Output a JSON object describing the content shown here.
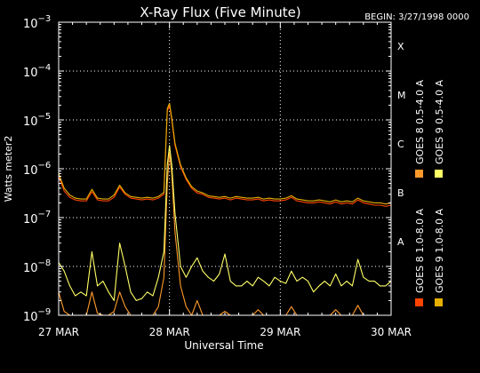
{
  "chart_data": {
    "type": "line",
    "title": "X-Ray Flux (Five Minute)",
    "begin_label": "BEGIN: 3/27/1998 0000",
    "xlabel": "Universal Time",
    "ylabel": "Watts meter2",
    "x_ticks": [
      "27 MAR",
      "28 MAR",
      "29 MAR",
      "30 MAR"
    ],
    "x_days": [
      27,
      30
    ],
    "y_scale": "log",
    "ylim": [
      1e-09,
      0.001
    ],
    "y_ticks": [
      {
        "base": "10",
        "exp": "−9",
        "value": 1e-09
      },
      {
        "base": "10",
        "exp": "−8",
        "value": 1e-08
      },
      {
        "base": "10",
        "exp": "−7",
        "value": 1e-07
      },
      {
        "base": "10",
        "exp": "−6",
        "value": 1e-06
      },
      {
        "base": "10",
        "exp": "−5",
        "value": 1e-05
      },
      {
        "base": "10",
        "exp": "−4",
        "value": 0.0001
      },
      {
        "base": "10",
        "exp": "−3",
        "value": 0.001
      }
    ],
    "flare_classes": [
      {
        "label": "A",
        "value": 1e-08
      },
      {
        "label": "B",
        "value": 1e-07
      },
      {
        "label": "C",
        "value": 1e-06
      },
      {
        "label": "M",
        "value": 1e-05
      },
      {
        "label": "X",
        "value": 0.0001
      }
    ],
    "grid": true,
    "legend_placement": "right",
    "series": [
      {
        "name": "GOES 8 1.0-8.0 A",
        "color": "#ff4400",
        "x": [
          27.0,
          27.05,
          27.1,
          27.15,
          27.2,
          27.25,
          27.3,
          27.35,
          27.4,
          27.45,
          27.5,
          27.55,
          27.6,
          27.65,
          27.7,
          27.75,
          27.8,
          27.85,
          27.9,
          27.95,
          27.98,
          28.0,
          28.02,
          28.05,
          28.1,
          28.15,
          28.2,
          28.25,
          28.3,
          28.35,
          28.4,
          28.45,
          28.5,
          28.55,
          28.6,
          28.65,
          28.7,
          28.75,
          28.8,
          28.85,
          28.9,
          28.95,
          29.0,
          29.05,
          29.1,
          29.15,
          29.2,
          29.25,
          29.3,
          29.35,
          29.4,
          29.45,
          29.5,
          29.55,
          29.6,
          29.65,
          29.7,
          29.75,
          29.8,
          29.85,
          29.9,
          29.95,
          30.0
        ],
        "y": [
          7e-07,
          3.5e-07,
          2.6e-07,
          2.3e-07,
          2.2e-07,
          2.2e-07,
          3.4e-07,
          2.3e-07,
          2.2e-07,
          2.2e-07,
          2.6e-07,
          4.2e-07,
          3e-07,
          2.5e-07,
          2.4e-07,
          2.3e-07,
          2.4e-07,
          2.3e-07,
          2.5e-07,
          3e-07,
          1.5e-05,
          2e-05,
          1e-05,
          3e-06,
          1.1e-06,
          6e-07,
          4e-07,
          3.2e-07,
          3e-07,
          2.6e-07,
          2.5e-07,
          2.4e-07,
          2.5e-07,
          2.3e-07,
          2.5e-07,
          2.4e-07,
          2.3e-07,
          2.3e-07,
          2.4e-07,
          2.2e-07,
          2.3e-07,
          2.2e-07,
          2.2e-07,
          2.3e-07,
          2.6e-07,
          2.2e-07,
          2.1e-07,
          2e-07,
          2e-07,
          2.1e-07,
          2e-07,
          1.9e-07,
          2.1e-07,
          1.9e-07,
          2e-07,
          1.9e-07,
          2.3e-07,
          2e-07,
          1.9e-07,
          1.8e-07,
          1.8e-07,
          1.7e-07,
          1.8e-07
        ]
      },
      {
        "name": "GOES 8 0.5-4.0 A",
        "color": "#ff9a2a",
        "x": [
          27.0,
          27.05,
          27.1,
          27.15,
          27.2,
          27.25,
          27.3,
          27.35,
          27.4,
          27.45,
          27.5,
          27.55,
          27.6,
          27.65,
          27.7,
          27.75,
          27.8,
          27.85,
          27.9,
          27.95,
          27.98,
          28.0,
          28.02,
          28.05,
          28.1,
          28.15,
          28.2,
          28.25,
          28.3,
          28.35,
          28.4,
          28.45,
          28.5,
          28.55,
          28.6,
          28.65,
          28.7,
          28.75,
          28.8,
          28.85,
          28.9,
          28.95,
          29.0,
          29.05,
          29.1,
          29.15,
          29.2,
          29.25,
          29.3,
          29.35,
          29.4,
          29.45,
          29.5,
          29.55,
          29.6,
          29.65,
          29.7,
          29.75,
          29.8,
          29.85,
          29.9,
          29.95,
          30.0
        ],
        "y": [
          3e-09,
          1.2e-09,
          1e-09,
          1e-09,
          1e-09,
          1e-09,
          3e-09,
          1.1e-09,
          1e-09,
          1e-09,
          1.2e-09,
          3e-09,
          1.5e-09,
          1e-09,
          1e-09,
          1e-09,
          1e-09,
          1e-09,
          1.5e-09,
          6e-09,
          5e-07,
          2.2e-06,
          8e-07,
          5e-08,
          4e-09,
          1.5e-09,
          1e-09,
          2e-09,
          1e-09,
          1e-09,
          1e-09,
          1e-09,
          1.2e-09,
          1e-09,
          1e-09,
          1e-09,
          1e-09,
          1e-09,
          1.3e-09,
          1e-09,
          1e-09,
          1e-09,
          1e-09,
          1e-09,
          1.5e-09,
          1e-09,
          1e-09,
          1e-09,
          1e-09,
          1e-09,
          1e-09,
          1e-09,
          1.3e-09,
          1e-09,
          1e-09,
          1e-09,
          1.6e-09,
          1e-09,
          1e-09,
          1e-09,
          1e-09,
          1e-09,
          1e-09
        ]
      },
      {
        "name": "GOES 9 1.0-8.0 A",
        "color": "#e6b000",
        "x": [
          27.0,
          27.05,
          27.1,
          27.15,
          27.2,
          27.25,
          27.3,
          27.35,
          27.4,
          27.45,
          27.5,
          27.55,
          27.6,
          27.65,
          27.7,
          27.75,
          27.8,
          27.85,
          27.9,
          27.95,
          27.98,
          28.0,
          28.02,
          28.05,
          28.1,
          28.15,
          28.2,
          28.25,
          28.3,
          28.35,
          28.4,
          28.45,
          28.5,
          28.55,
          28.6,
          28.65,
          28.7,
          28.75,
          28.8,
          28.85,
          28.9,
          28.95,
          29.0,
          29.05,
          29.1,
          29.15,
          29.2,
          29.25,
          29.3,
          29.35,
          29.4,
          29.45,
          29.5,
          29.55,
          29.6,
          29.65,
          29.7,
          29.75,
          29.8,
          29.85,
          29.9,
          29.95,
          30.0
        ],
        "y": [
          8e-07,
          4e-07,
          2.9e-07,
          2.5e-07,
          2.4e-07,
          2.4e-07,
          3.8e-07,
          2.5e-07,
          2.4e-07,
          2.4e-07,
          2.9e-07,
          4.6e-07,
          3.2e-07,
          2.7e-07,
          2.6e-07,
          2.5e-07,
          2.6e-07,
          2.5e-07,
          2.7e-07,
          3.3e-07,
          1.7e-05,
          2.2e-05,
          1.1e-05,
          3.3e-06,
          1.2e-06,
          6.5e-07,
          4.3e-07,
          3.5e-07,
          3.2e-07,
          2.8e-07,
          2.7e-07,
          2.6e-07,
          2.7e-07,
          2.5e-07,
          2.7e-07,
          2.6e-07,
          2.5e-07,
          2.5e-07,
          2.6e-07,
          2.4e-07,
          2.5e-07,
          2.4e-07,
          2.4e-07,
          2.5e-07,
          2.8e-07,
          2.4e-07,
          2.3e-07,
          2.2e-07,
          2.2e-07,
          2.3e-07,
          2.2e-07,
          2.1e-07,
          2.3e-07,
          2.1e-07,
          2.2e-07,
          2.1e-07,
          2.5e-07,
          2.2e-07,
          2.1e-07,
          2e-07,
          2e-07,
          1.9e-07,
          2e-07
        ]
      },
      {
        "name": "GOES 9 0.5-4.0 A",
        "color": "#ffff66",
        "x": [
          27.0,
          27.05,
          27.1,
          27.15,
          27.2,
          27.25,
          27.3,
          27.35,
          27.4,
          27.45,
          27.5,
          27.55,
          27.6,
          27.65,
          27.7,
          27.75,
          27.8,
          27.85,
          27.9,
          27.95,
          27.98,
          28.0,
          28.02,
          28.05,
          28.1,
          28.15,
          28.2,
          28.25,
          28.3,
          28.35,
          28.4,
          28.45,
          28.5,
          28.55,
          28.6,
          28.65,
          28.7,
          28.75,
          28.8,
          28.85,
          28.9,
          28.95,
          29.0,
          29.05,
          29.1,
          29.15,
          29.2,
          29.25,
          29.3,
          29.35,
          29.4,
          29.45,
          29.5,
          29.55,
          29.6,
          29.65,
          29.7,
          29.75,
          29.8,
          29.85,
          29.9,
          29.95,
          30.0
        ],
        "y": [
          1.2e-08,
          8e-09,
          4e-09,
          2.5e-09,
          3e-09,
          2.5e-09,
          2e-08,
          4e-09,
          5e-09,
          3e-09,
          2e-09,
          3e-08,
          1e-08,
          3e-09,
          2e-09,
          2.2e-09,
          3e-09,
          2.5e-09,
          6e-09,
          2e-08,
          1.2e-06,
          3e-06,
          1.2e-06,
          1.2e-07,
          1e-08,
          6e-09,
          1e-08,
          1.5e-08,
          8e-09,
          6e-09,
          5e-09,
          7e-09,
          1.8e-08,
          5e-09,
          4e-09,
          4e-09,
          5e-09,
          4e-09,
          6e-09,
          5e-09,
          4e-09,
          6e-09,
          5e-09,
          4.5e-09,
          8e-09,
          5e-09,
          6e-09,
          5e-09,
          3e-09,
          4e-09,
          5e-09,
          4e-09,
          7e-09,
          4e-09,
          5e-09,
          4e-09,
          1.4e-08,
          6e-09,
          5e-09,
          5e-09,
          4e-09,
          4e-09,
          5e-09
        ]
      }
    ]
  }
}
